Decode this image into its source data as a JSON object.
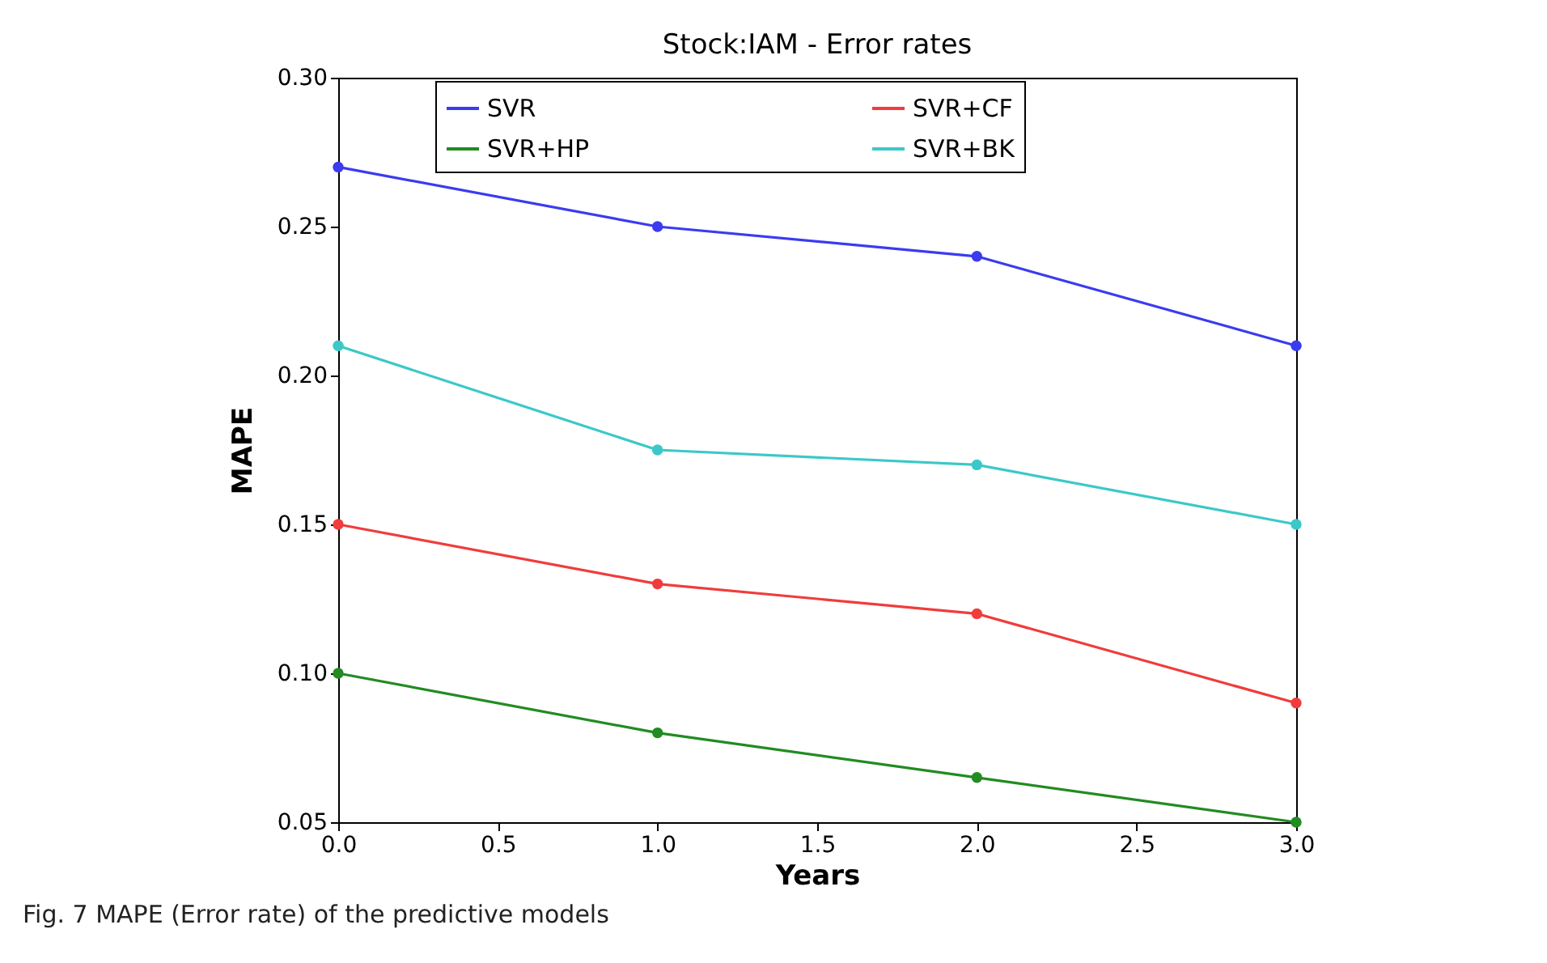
{
  "chart_data": {
    "type": "line",
    "title": "Stock:IAM - Error rates",
    "xlabel": "Years",
    "ylabel": "MAPE",
    "x": [
      0,
      1,
      2,
      3
    ],
    "series": [
      {
        "name": "SVR",
        "color": "#3b3bf0",
        "values": [
          0.27,
          0.25,
          0.24,
          0.21
        ]
      },
      {
        "name": "SVR+HP",
        "color": "#228b22",
        "values": [
          0.1,
          0.08,
          0.065,
          0.05
        ]
      },
      {
        "name": "SVR+CF",
        "color": "#f03c3c",
        "values": [
          0.15,
          0.13,
          0.12,
          0.09
        ]
      },
      {
        "name": "SVR+BK",
        "color": "#3cc8c8",
        "values": [
          0.21,
          0.175,
          0.17,
          0.15
        ]
      }
    ],
    "xlim": [
      0,
      3
    ],
    "xticks": [
      {
        "value": 0,
        "label": "0.0"
      },
      0.5,
      {
        "value": 1,
        "label": "1.0"
      },
      1.5,
      {
        "value": 2,
        "label": "2.0"
      },
      2.5,
      {
        "value": 3,
        "label": "3.0"
      }
    ],
    "ylim": [
      0.05,
      0.3
    ],
    "yticks": [
      0.05,
      {
        "value": 0.1,
        "label": "0.10"
      },
      0.15,
      {
        "value": 0.2,
        "label": "0.20"
      },
      0.25,
      {
        "value": 0.3,
        "label": "0.30"
      }
    ],
    "grid": false,
    "legend": "top",
    "marker": "circle",
    "line_style": "solid",
    "annotations": [
      "Fig. 7  MAPE (Error rate) of the predictive models"
    ]
  }
}
